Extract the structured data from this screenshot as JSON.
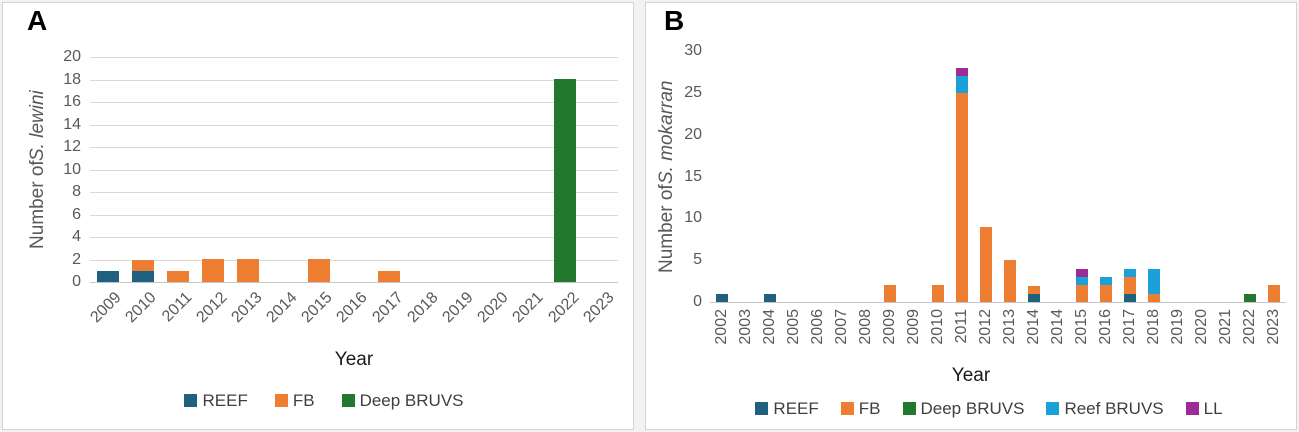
{
  "figure": {
    "background_color": "#ffffff",
    "panel_border_color": "#d3d3d3",
    "gridline_color": "#d9d9d9",
    "axis_line_color": "#c6c6c6",
    "tick_label_color": "#595959",
    "axis_title_color": "#1a1a1a"
  },
  "chart_data": [
    {
      "panel_label": "A",
      "type": "bar",
      "stacked": true,
      "xlabel": "Year",
      "ylabel_prefix": "Number of ",
      "ylabel_species": "S. lewini",
      "ylim": [
        0,
        20
      ],
      "yticks": [
        0,
        2,
        4,
        6,
        8,
        10,
        12,
        14,
        16,
        18,
        20
      ],
      "grid": true,
      "legend_position": "bottom",
      "x_label_rotation": -45,
      "bar_fraction": 0.62,
      "categories": [
        "2009",
        "2010",
        "2011",
        "2012",
        "2013",
        "2014",
        "2015",
        "2016",
        "2017",
        "2018",
        "2019",
        "2020",
        "2021",
        "2022",
        "2023"
      ],
      "series": [
        {
          "name": "REEF",
          "color": "#20617F",
          "values": [
            1,
            1,
            0,
            0,
            0,
            0,
            0,
            0,
            0,
            0,
            0,
            0,
            0,
            0,
            0
          ]
        },
        {
          "name": "FB",
          "color": "#ED7D31",
          "values": [
            0,
            1,
            1,
            2,
            2,
            0,
            2,
            0,
            1,
            0,
            0,
            0,
            0,
            0,
            0
          ]
        },
        {
          "name": "Deep BRUVS",
          "color": "#21782E",
          "values": [
            0,
            0,
            0,
            0,
            0,
            0,
            0,
            0,
            0,
            0,
            0,
            0,
            0,
            18,
            0
          ]
        }
      ]
    },
    {
      "panel_label": "B",
      "type": "bar",
      "stacked": true,
      "xlabel": "Year",
      "ylabel_prefix": "Number of ",
      "ylabel_species": "S. mokarran",
      "ylim": [
        0,
        30
      ],
      "yticks": [
        0,
        5,
        10,
        15,
        20,
        25,
        30
      ],
      "grid": false,
      "legend_position": "bottom",
      "x_label_rotation": -90,
      "bar_fraction": 0.52,
      "categories": [
        "2002",
        "2003",
        "2004",
        "2005",
        "2006",
        "2007",
        "2008",
        "2009",
        "2009",
        "2010",
        "2011",
        "2012",
        "2013",
        "2014",
        "2014",
        "2015",
        "2016",
        "2017",
        "2018",
        "2019",
        "2020",
        "2021",
        "2022",
        "2023"
      ],
      "series": [
        {
          "name": "REEF",
          "color": "#20617F",
          "values": [
            1,
            0,
            1,
            0,
            0,
            0,
            0,
            0,
            0,
            0,
            0,
            0,
            0,
            1,
            0,
            0,
            0,
            1,
            0,
            0,
            0,
            0,
            0,
            0
          ]
        },
        {
          "name": "FB",
          "color": "#ED7D31",
          "values": [
            0,
            0,
            0,
            0,
            0,
            0,
            0,
            2,
            0,
            2,
            25,
            9,
            5,
            1,
            0,
            2,
            2,
            2,
            1,
            0,
            0,
            0,
            0,
            2
          ]
        },
        {
          "name": "Deep BRUVS",
          "color": "#21782E",
          "values": [
            0,
            0,
            0,
            0,
            0,
            0,
            0,
            0,
            0,
            0,
            0,
            0,
            0,
            0,
            0,
            0,
            0,
            0,
            0,
            0,
            0,
            0,
            1,
            0
          ]
        },
        {
          "name": "Reef BRUVS",
          "color": "#1BA0D9",
          "values": [
            0,
            0,
            0,
            0,
            0,
            0,
            0,
            0,
            0,
            0,
            2,
            0,
            0,
            0,
            0,
            1,
            1,
            1,
            3,
            0,
            0,
            0,
            0,
            0
          ]
        },
        {
          "name": "LL",
          "color": "#9B2C96",
          "values": [
            0,
            0,
            0,
            0,
            0,
            0,
            0,
            0,
            0,
            0,
            1,
            0,
            0,
            0,
            0,
            1,
            0,
            0,
            0,
            0,
            0,
            0,
            0,
            0
          ]
        }
      ]
    }
  ]
}
